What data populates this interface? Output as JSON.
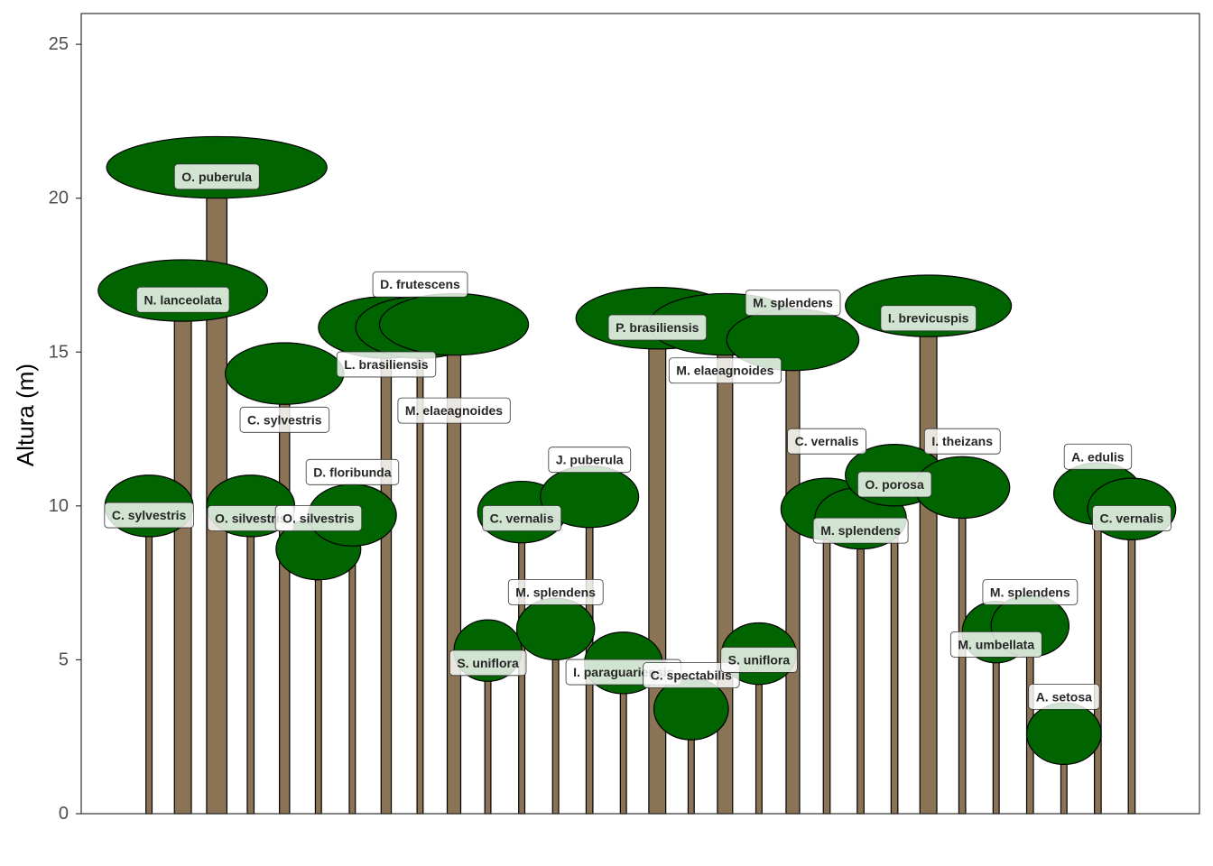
{
  "chart_data": {
    "type": "scatter",
    "description_type": "tree-profile",
    "title": "",
    "xlabel": "",
    "ylabel": "Altura (m)",
    "ylim": [
      0,
      26
    ],
    "y_ticks": [
      0,
      5,
      10,
      15,
      20,
      25
    ],
    "grid": false,
    "legend": "none",
    "colors": {
      "crown": "#006400",
      "trunk": "#8b7355",
      "outline": "#000000",
      "label_bg": "#ffffff"
    },
    "trees": [
      {
        "species": "C. sylvestris",
        "x": 2,
        "height": 10.0,
        "crown_diameter": 2.6,
        "crown_depth": 2.0,
        "trunk_width": 0.18,
        "label_y": 9.7
      },
      {
        "species": "N. lanceolata",
        "x": 3,
        "height": 17.0,
        "crown_diameter": 5.0,
        "crown_depth": 2.0,
        "trunk_width": 0.5,
        "label_y": 16.7
      },
      {
        "species": "O. puberula",
        "x": 4,
        "height": 21.0,
        "crown_diameter": 6.5,
        "crown_depth": 2.0,
        "trunk_width": 0.6,
        "label_y": 20.7
      },
      {
        "species": "O. silvestris",
        "x": 5,
        "height": 10.0,
        "crown_diameter": 2.6,
        "crown_depth": 2.0,
        "trunk_width": 0.2,
        "label_y": 9.6
      },
      {
        "species": "C. sylvestris",
        "x": 6,
        "height": 14.3,
        "crown_diameter": 3.5,
        "crown_depth": 2.0,
        "trunk_width": 0.3,
        "label_y": 12.8
      },
      {
        "species": "O. silvestris",
        "x": 7,
        "height": 8.6,
        "crown_diameter": 2.5,
        "crown_depth": 2.0,
        "trunk_width": 0.18,
        "label_y": 9.6
      },
      {
        "species": "D. floribunda",
        "x": 8,
        "height": 9.7,
        "crown_diameter": 2.6,
        "crown_depth": 2.0,
        "trunk_width": 0.18,
        "label_y": 11.1
      },
      {
        "species": "L. brasiliensis",
        "x": 9,
        "height": 15.8,
        "crown_diameter": 4.0,
        "crown_depth": 2.0,
        "trunk_width": 0.3,
        "label_y": 14.6
      },
      {
        "species": "D. frutescens",
        "x": 10,
        "height": 15.8,
        "crown_diameter": 3.8,
        "crown_depth": 2.0,
        "trunk_width": 0.18,
        "label_y": 17.2
      },
      {
        "species": "M. elaeagnoides",
        "x": 11,
        "height": 15.9,
        "crown_diameter": 4.4,
        "crown_depth": 2.0,
        "trunk_width": 0.4,
        "label_y": 13.1
      },
      {
        "species": "S. uniflora",
        "x": 12,
        "height": 5.3,
        "crown_diameter": 2.0,
        "crown_depth": 2.0,
        "trunk_width": 0.18,
        "label_y": 4.9
      },
      {
        "species": "C. vernalis",
        "x": 13,
        "height": 9.8,
        "crown_diameter": 2.6,
        "crown_depth": 2.0,
        "trunk_width": 0.18,
        "label_y": 9.6
      },
      {
        "species": "M. splendens",
        "x": 14,
        "height": 6.0,
        "crown_diameter": 2.3,
        "crown_depth": 2.0,
        "trunk_width": 0.18,
        "label_y": 7.2
      },
      {
        "species": "J. puberula",
        "x": 15,
        "height": 10.3,
        "crown_diameter": 2.9,
        "crown_depth": 2.0,
        "trunk_width": 0.2,
        "label_y": 11.5
      },
      {
        "species": "I. paraguariensis",
        "x": 16,
        "height": 4.9,
        "crown_diameter": 2.3,
        "crown_depth": 2.0,
        "trunk_width": 0.18,
        "label_y": 4.6
      },
      {
        "species": "P. brasiliensis",
        "x": 17,
        "height": 16.1,
        "crown_diameter": 4.8,
        "crown_depth": 2.0,
        "trunk_width": 0.5,
        "label_y": 15.8
      },
      {
        "species": "C. spectabilis",
        "x": 18,
        "height": 3.4,
        "crown_diameter": 2.2,
        "crown_depth": 2.0,
        "trunk_width": 0.18,
        "label_y": 4.5
      },
      {
        "species": "M. elaeagnoides",
        "x": 19,
        "height": 15.9,
        "crown_diameter": 4.5,
        "crown_depth": 2.0,
        "trunk_width": 0.45,
        "label_y": 14.4
      },
      {
        "species": "S. uniflora",
        "x": 20,
        "height": 5.2,
        "crown_diameter": 2.2,
        "crown_depth": 2.0,
        "trunk_width": 0.18,
        "label_y": 5.0
      },
      {
        "species": "M. splendens",
        "x": 21,
        "height": 15.4,
        "crown_diameter": 3.9,
        "crown_depth": 2.0,
        "trunk_width": 0.4,
        "label_y": 16.6
      },
      {
        "species": "C. vernalis",
        "x": 22,
        "height": 9.9,
        "crown_diameter": 2.7,
        "crown_depth": 2.0,
        "trunk_width": 0.2,
        "label_y": 12.1
      },
      {
        "species": "M. splendens",
        "x": 23,
        "height": 9.6,
        "crown_diameter": 2.7,
        "crown_depth": 2.0,
        "trunk_width": 0.2,
        "label_y": 9.2
      },
      {
        "species": "O. porosa",
        "x": 24,
        "height": 11.0,
        "crown_diameter": 2.9,
        "crown_depth": 2.0,
        "trunk_width": 0.2,
        "label_y": 10.7
      },
      {
        "species": "I. brevicuspis",
        "x": 25,
        "height": 16.5,
        "crown_diameter": 4.9,
        "crown_depth": 2.0,
        "trunk_width": 0.5,
        "label_y": 16.1
      },
      {
        "species": "I. theizans",
        "x": 26,
        "height": 10.6,
        "crown_diameter": 2.8,
        "crown_depth": 2.0,
        "trunk_width": 0.2,
        "label_y": 12.1
      },
      {
        "species": "M. umbellata",
        "x": 27,
        "height": 5.9,
        "crown_diameter": 2.0,
        "crown_depth": 2.0,
        "trunk_width": 0.18,
        "label_y": 5.5
      },
      {
        "species": "M. splendens",
        "x": 28,
        "height": 6.1,
        "crown_diameter": 2.3,
        "crown_depth": 2.0,
        "trunk_width": 0.2,
        "label_y": 7.2
      },
      {
        "species": "A. setosa",
        "x": 29,
        "height": 2.6,
        "crown_diameter": 2.2,
        "crown_depth": 2.0,
        "trunk_width": 0.18,
        "label_y": 3.8
      },
      {
        "species": "A. edulis",
        "x": 30,
        "height": 10.4,
        "crown_diameter": 2.6,
        "crown_depth": 2.0,
        "trunk_width": 0.2,
        "label_y": 11.6
      },
      {
        "species": "C. vernalis",
        "x": 31,
        "height": 9.9,
        "crown_diameter": 2.6,
        "crown_depth": 2.0,
        "trunk_width": 0.2,
        "label_y": 9.6
      }
    ]
  }
}
